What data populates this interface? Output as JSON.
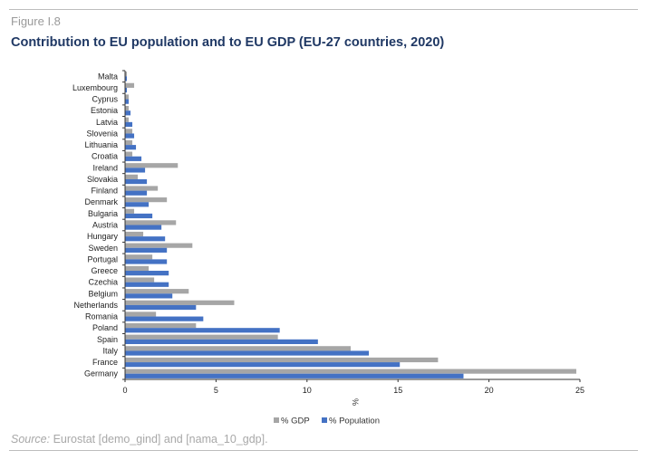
{
  "figure_label": "Figure I.8",
  "source_label": "Source:",
  "source_text": "Eurostat [demo_gind]  and [nama_10_gdp].",
  "colors": {
    "gdp": "#a6a6a6",
    "population": "#4472c4",
    "title": "#1f3864"
  },
  "chart_data": {
    "type": "bar",
    "orientation": "horizontal",
    "title": "Contribution to EU population and to EU GDP (EU-27 countries, 2020)",
    "xlabel": "%",
    "ylabel": "",
    "xlim": [
      0,
      25
    ],
    "xticks": [
      0,
      5,
      10,
      15,
      20,
      25
    ],
    "grid": false,
    "legend": "bottom",
    "categories": [
      "Malta",
      "Luxembourg",
      "Cyprus",
      "Estonia",
      "Latvia",
      "Slovenia",
      "Lithuania",
      "Croatia",
      "Ireland",
      "Slovakia",
      "Finland",
      "Denmark",
      "Bulgaria",
      "Austria",
      "Hungary",
      "Sweden",
      "Portugal",
      "Greece",
      "Czechia",
      "Belgium",
      "Netherlands",
      "Romania",
      "Poland",
      "Spain",
      "Italy",
      "France",
      "Germany"
    ],
    "series": [
      {
        "name": "% GDP",
        "values": [
          0.1,
          0.5,
          0.2,
          0.2,
          0.2,
          0.4,
          0.4,
          0.4,
          2.9,
          0.7,
          1.8,
          2.3,
          0.5,
          2.8,
          1.0,
          3.7,
          1.5,
          1.3,
          1.6,
          3.5,
          6.0,
          1.7,
          3.9,
          8.4,
          12.4,
          17.2,
          24.8
        ]
      },
      {
        "name": "% Population",
        "values": [
          0.1,
          0.1,
          0.2,
          0.3,
          0.4,
          0.5,
          0.6,
          0.9,
          1.1,
          1.2,
          1.2,
          1.3,
          1.5,
          2.0,
          2.2,
          2.3,
          2.3,
          2.4,
          2.4,
          2.6,
          3.9,
          4.3,
          8.5,
          10.6,
          13.4,
          15.1,
          18.6
        ]
      }
    ]
  }
}
